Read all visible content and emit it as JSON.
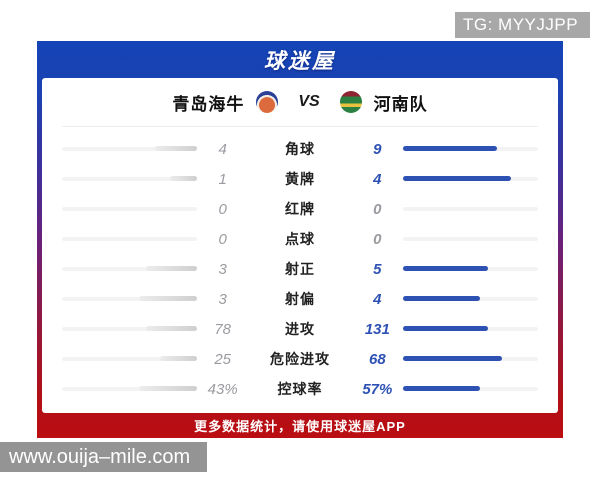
{
  "overlay": {
    "badge_text": "TG: MYYJJPP",
    "watermark_text": "www.ouija–mile.com"
  },
  "app": {
    "brand": "球迷屋",
    "footer_text": "更多数据统计，请使用球迷屋APP"
  },
  "match": {
    "home_team": "青岛海牛",
    "away_team": "河南队",
    "vs_label": "VS",
    "home_logo": "qingdao-hainiu-crest",
    "away_logo": "henan-crest"
  },
  "stats": {
    "rows": [
      {
        "label": "角球",
        "home": "4",
        "away": "9"
      },
      {
        "label": "黄牌",
        "home": "1",
        "away": "4"
      },
      {
        "label": "红牌",
        "home": "0",
        "away": "0"
      },
      {
        "label": "点球",
        "home": "0",
        "away": "0"
      },
      {
        "label": "射正",
        "home": "3",
        "away": "5"
      },
      {
        "label": "射偏",
        "home": "3",
        "away": "4"
      },
      {
        "label": "进攻",
        "home": "78",
        "away": "131"
      },
      {
        "label": "危险进攻",
        "home": "25",
        "away": "68"
      },
      {
        "label": "控球率",
        "home": "43%",
        "away": "57%"
      }
    ]
  },
  "chart_data": {
    "type": "bar",
    "title": "青岛海牛 VS 河南队",
    "categories": [
      "角球",
      "黄牌",
      "红牌",
      "点球",
      "射正",
      "射偏",
      "进攻",
      "危险进攻",
      "控球率"
    ],
    "series": [
      {
        "name": "青岛海牛",
        "values": [
          4,
          1,
          0,
          0,
          3,
          3,
          78,
          25,
          43
        ]
      },
      {
        "name": "河南队",
        "values": [
          9,
          4,
          0,
          0,
          5,
          4,
          131,
          68,
          57
        ]
      }
    ],
    "value_note": "控球率 values are percentages (43% / 57%); bars are paired horizontal bars normalized per row",
    "legend_position": "top"
  },
  "colors": {
    "gradient_top": "#1444b6",
    "gradient_mid": "#6e2076",
    "gradient_bottom": "#ba0e12",
    "bar_blue": "#2e52b4",
    "bar_gray": "#d6d6d6",
    "home_value_gray": "#9a9aa0",
    "badge_gray": "#a8a8a8",
    "watermark_gray": "#949494"
  }
}
